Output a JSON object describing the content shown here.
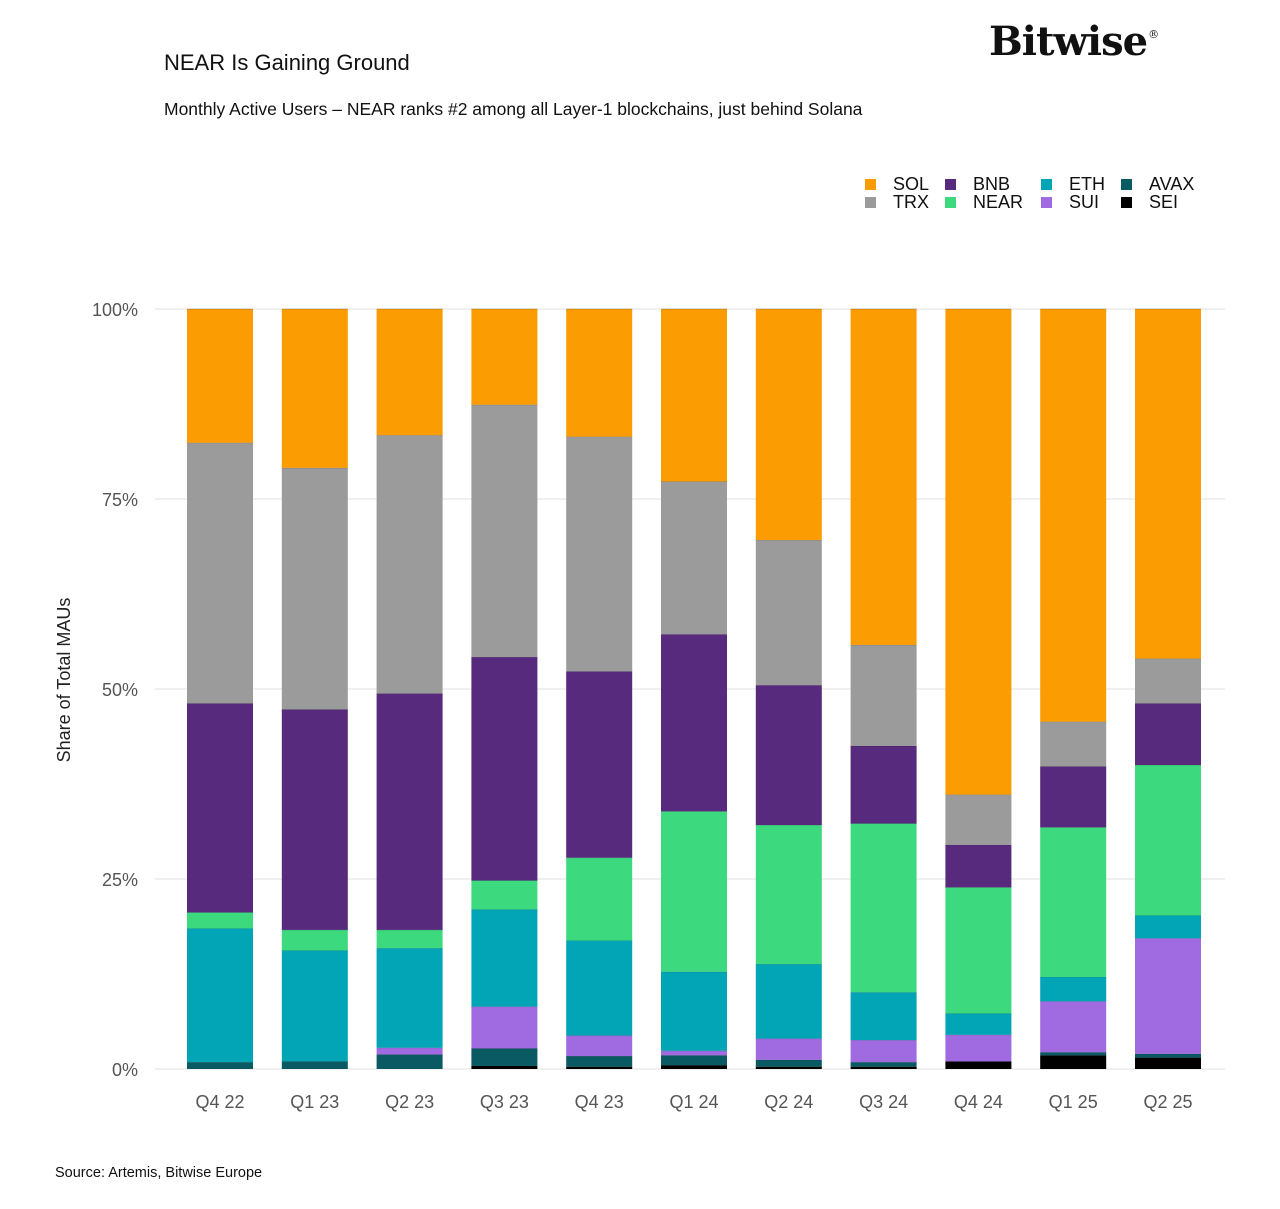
{
  "header": {
    "title": "NEAR Is Gaining Ground",
    "subtitle": "Monthly Active Users – NEAR ranks #2 among all Layer-1 blockchains, just behind Solana",
    "brand": "Bitwise",
    "brand_mark": "®"
  },
  "footer": {
    "source": "Source: Artemis, Bitwise Europe"
  },
  "colors": {
    "SOL": "#FA9C02",
    "TRX": "#9B9B9B",
    "BNB": "#572A7D",
    "NEAR": "#3DD97E",
    "ETH": "#02A5B5",
    "SUI": "#A06BE0",
    "AVAX": "#0A5A64",
    "SEI": "#000000"
  },
  "chart_data": {
    "type": "bar",
    "stacked": true,
    "title": "NEAR Is Gaining Ground",
    "xlabel": "",
    "ylabel": "Share of Total MAUs",
    "ylim": [
      0,
      100
    ],
    "yticks": [
      "0%",
      "25%",
      "50%",
      "75%",
      "100%"
    ],
    "legend_position": "top-right",
    "legend_order": [
      "SOL",
      "BNB",
      "ETH",
      "AVAX",
      "TRX",
      "NEAR",
      "SUI",
      "SEI"
    ],
    "categories": [
      "Q4 22",
      "Q1 23",
      "Q2 23",
      "Q3 23",
      "Q4 23",
      "Q1 24",
      "Q2 24",
      "Q3 24",
      "Q4 24",
      "Q1 25",
      "Q2 25"
    ],
    "stack_order": [
      "SEI",
      "AVAX",
      "SUI",
      "ETH",
      "NEAR",
      "BNB",
      "TRX",
      "SOL"
    ],
    "series": [
      {
        "name": "SEI",
        "values": [
          0.0,
          0.0,
          0.0,
          0.4,
          0.3,
          0.5,
          0.3,
          0.3,
          1.0,
          1.8,
          1.5
        ]
      },
      {
        "name": "AVAX",
        "values": [
          0.9,
          1.0,
          1.9,
          2.3,
          1.4,
          1.3,
          0.9,
          0.6,
          0.0,
          0.4,
          0.5
        ]
      },
      {
        "name": "SUI",
        "values": [
          0.0,
          0.0,
          0.9,
          5.5,
          2.7,
          0.6,
          2.8,
          2.9,
          3.5,
          6.7,
          15.2
        ]
      },
      {
        "name": "ETH",
        "values": [
          17.6,
          14.6,
          13.1,
          12.8,
          12.5,
          10.4,
          9.8,
          6.3,
          2.8,
          3.2,
          3.0
        ]
      },
      {
        "name": "NEAR",
        "values": [
          2.1,
          2.7,
          2.4,
          3.8,
          10.9,
          21.1,
          18.3,
          22.2,
          16.6,
          19.7,
          19.8
        ]
      },
      {
        "name": "BNB",
        "values": [
          27.5,
          29.0,
          31.1,
          29.4,
          24.5,
          23.3,
          18.4,
          10.2,
          5.6,
          8.0,
          8.1
        ]
      },
      {
        "name": "TRX",
        "values": [
          34.3,
          31.8,
          34.0,
          33.2,
          30.9,
          20.1,
          19.1,
          13.3,
          6.6,
          5.9,
          5.9
        ]
      },
      {
        "name": "SOL",
        "values": [
          17.6,
          20.9,
          16.6,
          12.6,
          16.8,
          22.7,
          30.4,
          44.2,
          63.9,
          54.3,
          46.0
        ]
      }
    ]
  }
}
